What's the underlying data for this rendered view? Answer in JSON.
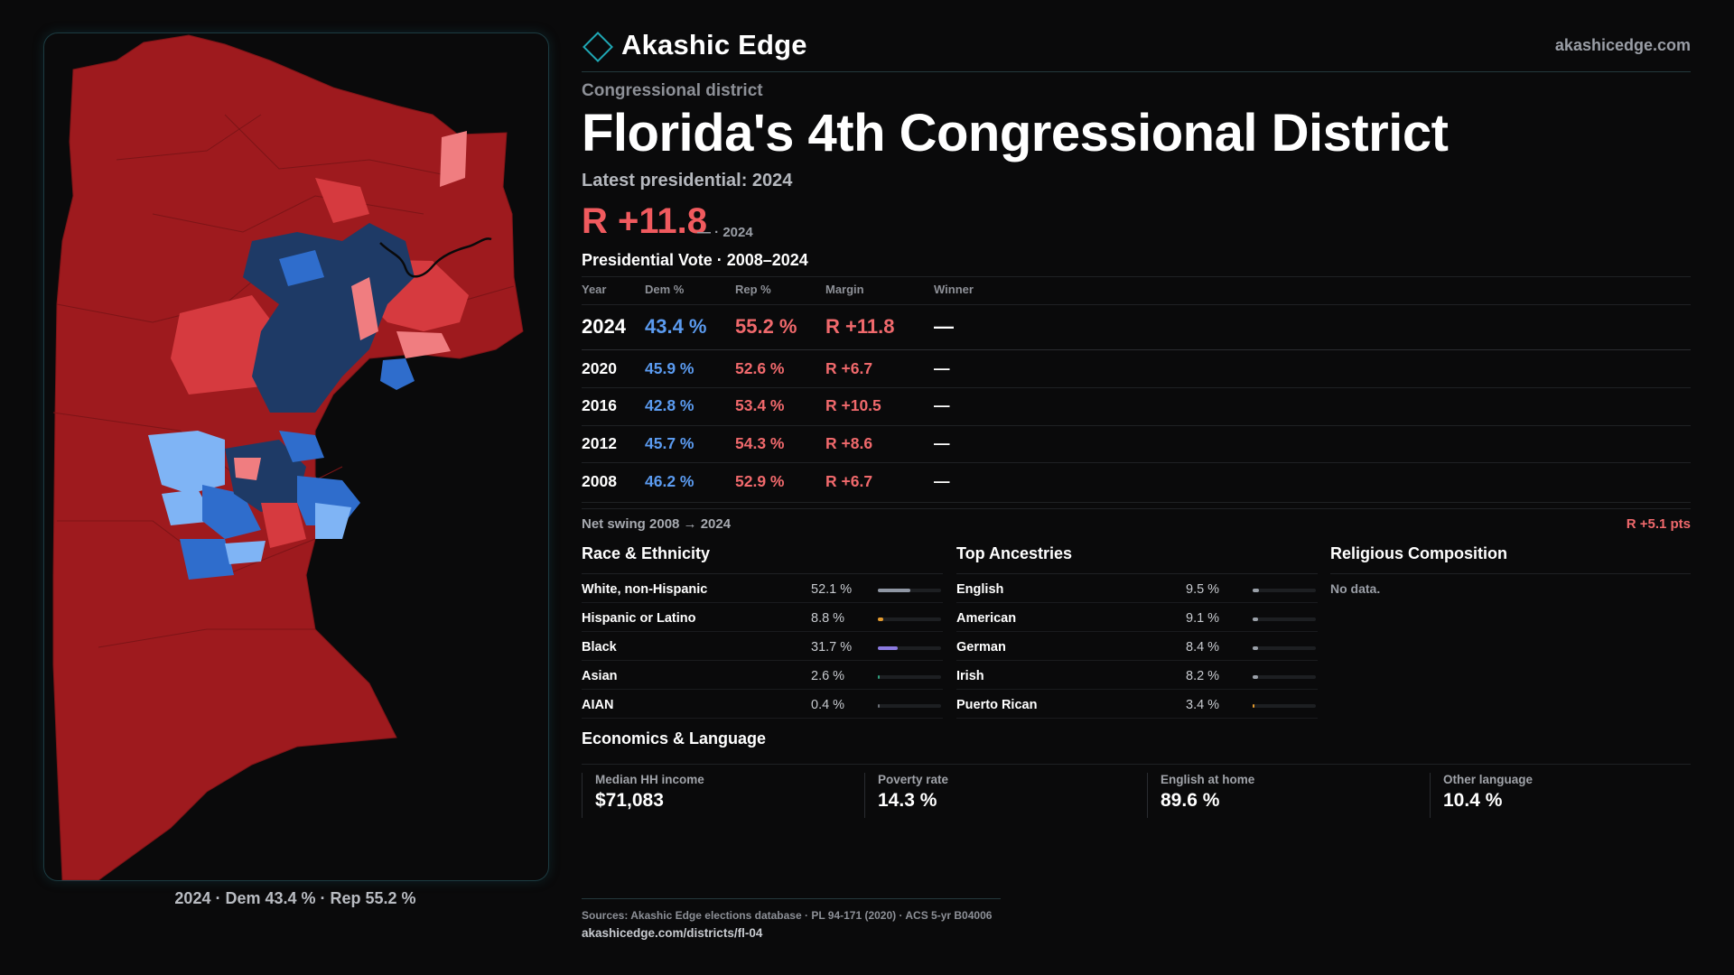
{
  "brand": {
    "name": "Akashic Edge",
    "site": "akashicedge.com"
  },
  "header": {
    "kicker": "Congressional district",
    "title": "Florida's 4th Congressional District",
    "latest_label": "Latest presidential: 2024",
    "margin": "R +11.8",
    "margin_sub": "— · 2024"
  },
  "presidential": {
    "title": "Presidential Vote · 2008–2024",
    "headers": {
      "year": "Year",
      "dem": "Dem %",
      "rep": "Rep %",
      "margin": "Margin",
      "winner": "Winner"
    },
    "rows": [
      {
        "year": "2024",
        "dem": "43.4 %",
        "rep": "55.2 %",
        "margin": "R +11.8",
        "winner": "—"
      },
      {
        "year": "2020",
        "dem": "45.9 %",
        "rep": "52.6 %",
        "margin": "R +6.7",
        "winner": "—"
      },
      {
        "year": "2016",
        "dem": "42.8 %",
        "rep": "53.4 %",
        "margin": "R +10.5",
        "winner": "—"
      },
      {
        "year": "2012",
        "dem": "45.7 %",
        "rep": "54.3 %",
        "margin": "R +8.6",
        "winner": "—"
      },
      {
        "year": "2008",
        "dem": "46.2 %",
        "rep": "52.9 %",
        "margin": "R +6.7",
        "winner": "—"
      }
    ],
    "swing_label": "Net swing 2008 → 2024",
    "swing_value": "R +5.1 pts"
  },
  "race": {
    "title": "Race & Ethnicity",
    "rows": [
      {
        "label": "White, non-Hispanic",
        "value": "52.1 %",
        "pct": 52.1,
        "color": "#8f96a3"
      },
      {
        "label": "Hispanic or Latino",
        "value": "8.8 %",
        "pct": 8.8,
        "color": "#e39a2e"
      },
      {
        "label": "Black",
        "value": "31.7 %",
        "pct": 31.7,
        "color": "#8b7ae0"
      },
      {
        "label": "Asian",
        "value": "2.6 %",
        "pct": 2.6,
        "color": "#2e9e7c"
      },
      {
        "label": "AIAN",
        "value": "0.4 %",
        "pct": 0.4,
        "color": "#6b6f76"
      }
    ]
  },
  "ancestry": {
    "title": "Top Ancestries",
    "rows": [
      {
        "label": "English",
        "value": "9.5 %",
        "pct": 9.5,
        "color": "#9aa0a8"
      },
      {
        "label": "American",
        "value": "9.1 %",
        "pct": 9.1,
        "color": "#9aa0a8"
      },
      {
        "label": "German",
        "value": "8.4 %",
        "pct": 8.4,
        "color": "#9aa0a8"
      },
      {
        "label": "Irish",
        "value": "8.2 %",
        "pct": 8.2,
        "color": "#9aa0a8"
      },
      {
        "label": "Puerto Rican",
        "value": "3.4 %",
        "pct": 3.4,
        "color": "#e39a2e"
      }
    ]
  },
  "religion": {
    "title": "Religious Composition",
    "empty": "No data."
  },
  "economics": {
    "title": "Economics & Language",
    "cards": [
      {
        "label": "Median HH income",
        "value": "$71,083"
      },
      {
        "label": "Poverty rate",
        "value": "14.3 %"
      },
      {
        "label": "English at home",
        "value": "89.6 %"
      },
      {
        "label": "Other language",
        "value": "10.4 %"
      }
    ]
  },
  "map": {
    "caption": "2024 · Dem 43.4 % · Rep 55.2 %"
  },
  "footer": {
    "sources": "Sources: Akashic Edge elections database · PL 94-171 (2020) · ACS 5-yr B04006",
    "url": "akashicedge.com/districts/fl-04"
  },
  "colors": {
    "accent": "#1fa7b4",
    "dem": "#5b9bf0",
    "rep": "#f0696c",
    "map_base": "#9e1a1e",
    "map_rep_mid": "#d63a3f",
    "map_rep_light": "#f07d80",
    "map_dem_dark": "#1e3a66",
    "map_dem_mid": "#2f6dcc",
    "map_dem_light": "#7fb4f5"
  }
}
